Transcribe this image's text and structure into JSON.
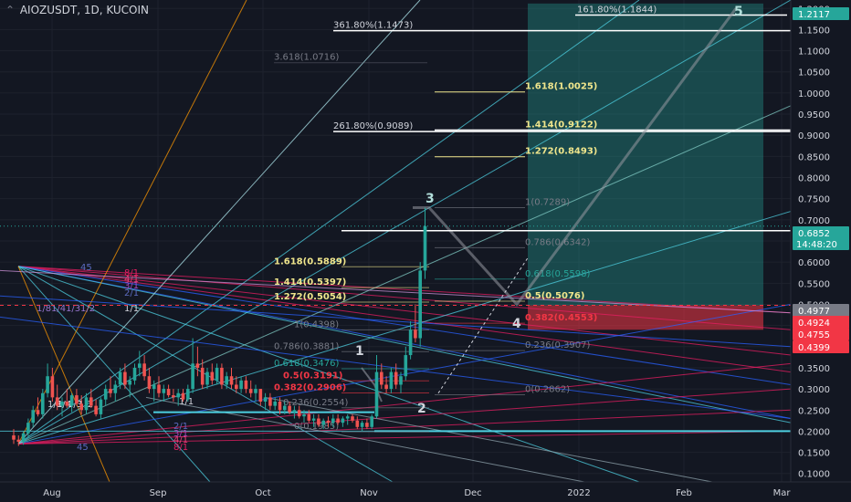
{
  "header": {
    "title": "AIOZUSDT, 1D, KUCOIN"
  },
  "chart_data": {
    "type": "candlestick",
    "symbol": "AIOZUSDT",
    "interval": "1D",
    "exchange": "KUCOIN",
    "x_ticks": [
      "Aug",
      "Sep",
      "Oct",
      "Nov",
      "Dec",
      "2022",
      "Feb",
      "Mar"
    ],
    "y_ticks": [
      "1.2000",
      "1.1500",
      "1.1000",
      "1.0500",
      "1.0000",
      "0.9500",
      "0.9000",
      "0.8500",
      "0.8000",
      "0.7500",
      "0.7000",
      "0.6500",
      "0.6000",
      "0.5500",
      "0.5000",
      "0.4500",
      "0.4000",
      "0.3500",
      "0.3000",
      "0.2500",
      "0.2000",
      "0.1500",
      "0.1000"
    ],
    "ylim": [
      0.08,
      1.22
    ],
    "last_price": {
      "value": "0.6852",
      "countdown": "14:48:20",
      "color": "#26a69a"
    },
    "price_tags": [
      {
        "value": "1.2117",
        "color": "#26a69a"
      },
      {
        "value": "0.4977",
        "color": "#787b86"
      },
      {
        "value": "0.4924",
        "color": "#f23645"
      },
      {
        "value": "0.4755",
        "color": "#f23645"
      },
      {
        "value": "0.4399",
        "color": "#f23645"
      }
    ],
    "candles": [
      {
        "d": 0,
        "o": 0.19,
        "h": 0.205,
        "l": 0.17,
        "c": 0.18
      },
      {
        "d": 1,
        "o": 0.18,
        "h": 0.19,
        "l": 0.165,
        "c": 0.175
      },
      {
        "d": 2,
        "o": 0.175,
        "h": 0.2,
        "l": 0.168,
        "c": 0.195
      },
      {
        "d": 3,
        "o": 0.195,
        "h": 0.23,
        "l": 0.185,
        "c": 0.22
      },
      {
        "d": 4,
        "o": 0.22,
        "h": 0.26,
        "l": 0.21,
        "c": 0.25
      },
      {
        "d": 5,
        "o": 0.25,
        "h": 0.28,
        "l": 0.235,
        "c": 0.24
      },
      {
        "d": 6,
        "o": 0.24,
        "h": 0.3,
        "l": 0.23,
        "c": 0.29
      },
      {
        "d": 7,
        "o": 0.29,
        "h": 0.36,
        "l": 0.28,
        "c": 0.33
      },
      {
        "d": 8,
        "o": 0.33,
        "h": 0.35,
        "l": 0.27,
        "c": 0.28
      },
      {
        "d": 9,
        "o": 0.28,
        "h": 0.31,
        "l": 0.25,
        "c": 0.26
      },
      {
        "d": 10,
        "o": 0.26,
        "h": 0.28,
        "l": 0.235,
        "c": 0.27
      },
      {
        "d": 11,
        "o": 0.27,
        "h": 0.3,
        "l": 0.255,
        "c": 0.26
      },
      {
        "d": 12,
        "o": 0.26,
        "h": 0.29,
        "l": 0.245,
        "c": 0.285
      },
      {
        "d": 13,
        "o": 0.285,
        "h": 0.3,
        "l": 0.26,
        "c": 0.265
      },
      {
        "d": 14,
        "o": 0.265,
        "h": 0.285,
        "l": 0.24,
        "c": 0.25
      },
      {
        "d": 15,
        "o": 0.25,
        "h": 0.29,
        "l": 0.24,
        "c": 0.28
      },
      {
        "d": 16,
        "o": 0.28,
        "h": 0.3,
        "l": 0.255,
        "c": 0.26
      },
      {
        "d": 17,
        "o": 0.26,
        "h": 0.275,
        "l": 0.235,
        "c": 0.24
      },
      {
        "d": 18,
        "o": 0.24,
        "h": 0.28,
        "l": 0.23,
        "c": 0.275
      },
      {
        "d": 19,
        "o": 0.275,
        "h": 0.31,
        "l": 0.26,
        "c": 0.3
      },
      {
        "d": 20,
        "o": 0.3,
        "h": 0.33,
        "l": 0.28,
        "c": 0.29
      },
      {
        "d": 21,
        "o": 0.29,
        "h": 0.32,
        "l": 0.27,
        "c": 0.31
      },
      {
        "d": 22,
        "o": 0.31,
        "h": 0.35,
        "l": 0.3,
        "c": 0.34
      },
      {
        "d": 23,
        "o": 0.34,
        "h": 0.36,
        "l": 0.3,
        "c": 0.31
      },
      {
        "d": 24,
        "o": 0.31,
        "h": 0.33,
        "l": 0.28,
        "c": 0.32
      },
      {
        "d": 25,
        "o": 0.32,
        "h": 0.36,
        "l": 0.31,
        "c": 0.35
      },
      {
        "d": 26,
        "o": 0.35,
        "h": 0.39,
        "l": 0.33,
        "c": 0.36
      },
      {
        "d": 27,
        "o": 0.36,
        "h": 0.38,
        "l": 0.32,
        "c": 0.33
      },
      {
        "d": 28,
        "o": 0.33,
        "h": 0.35,
        "l": 0.29,
        "c": 0.3
      },
      {
        "d": 29,
        "o": 0.3,
        "h": 0.32,
        "l": 0.27,
        "c": 0.31
      },
      {
        "d": 30,
        "o": 0.31,
        "h": 0.33,
        "l": 0.28,
        "c": 0.29
      },
      {
        "d": 31,
        "o": 0.29,
        "h": 0.31,
        "l": 0.27,
        "c": 0.3
      },
      {
        "d": 32,
        "o": 0.3,
        "h": 0.31,
        "l": 0.28,
        "c": 0.285
      },
      {
        "d": 33,
        "o": 0.285,
        "h": 0.3,
        "l": 0.27,
        "c": 0.28
      },
      {
        "d": 34,
        "o": 0.28,
        "h": 0.3,
        "l": 0.26,
        "c": 0.29
      },
      {
        "d": 35,
        "o": 0.29,
        "h": 0.3,
        "l": 0.27,
        "c": 0.275
      },
      {
        "d": 36,
        "o": 0.275,
        "h": 0.31,
        "l": 0.27,
        "c": 0.3
      },
      {
        "d": 37,
        "o": 0.3,
        "h": 0.42,
        "l": 0.29,
        "c": 0.36
      },
      {
        "d": 38,
        "o": 0.36,
        "h": 0.4,
        "l": 0.33,
        "c": 0.35
      },
      {
        "d": 39,
        "o": 0.35,
        "h": 0.37,
        "l": 0.3,
        "c": 0.31
      },
      {
        "d": 40,
        "o": 0.31,
        "h": 0.35,
        "l": 0.3,
        "c": 0.34
      },
      {
        "d": 41,
        "o": 0.34,
        "h": 0.36,
        "l": 0.31,
        "c": 0.32
      },
      {
        "d": 42,
        "o": 0.32,
        "h": 0.36,
        "l": 0.31,
        "c": 0.35
      },
      {
        "d": 43,
        "o": 0.35,
        "h": 0.36,
        "l": 0.3,
        "c": 0.31
      },
      {
        "d": 44,
        "o": 0.31,
        "h": 0.34,
        "l": 0.3,
        "c": 0.33
      },
      {
        "d": 45,
        "o": 0.33,
        "h": 0.35,
        "l": 0.3,
        "c": 0.31
      },
      {
        "d": 46,
        "o": 0.31,
        "h": 0.33,
        "l": 0.29,
        "c": 0.3
      },
      {
        "d": 47,
        "o": 0.3,
        "h": 0.33,
        "l": 0.29,
        "c": 0.32
      },
      {
        "d": 48,
        "o": 0.32,
        "h": 0.33,
        "l": 0.29,
        "c": 0.3
      },
      {
        "d": 49,
        "o": 0.3,
        "h": 0.32,
        "l": 0.28,
        "c": 0.29
      },
      {
        "d": 50,
        "o": 0.29,
        "h": 0.31,
        "l": 0.27,
        "c": 0.3
      },
      {
        "d": 51,
        "o": 0.3,
        "h": 0.3,
        "l": 0.26,
        "c": 0.27
      },
      {
        "d": 52,
        "o": 0.27,
        "h": 0.29,
        "l": 0.25,
        "c": 0.28
      },
      {
        "d": 53,
        "o": 0.28,
        "h": 0.29,
        "l": 0.25,
        "c": 0.26
      },
      {
        "d": 54,
        "o": 0.26,
        "h": 0.28,
        "l": 0.25,
        "c": 0.27
      },
      {
        "d": 55,
        "o": 0.27,
        "h": 0.28,
        "l": 0.24,
        "c": 0.25
      },
      {
        "d": 56,
        "o": 0.25,
        "h": 0.27,
        "l": 0.24,
        "c": 0.26
      },
      {
        "d": 57,
        "o": 0.26,
        "h": 0.27,
        "l": 0.24,
        "c": 0.245
      },
      {
        "d": 58,
        "o": 0.245,
        "h": 0.26,
        "l": 0.23,
        "c": 0.25
      },
      {
        "d": 59,
        "o": 0.25,
        "h": 0.26,
        "l": 0.23,
        "c": 0.235
      },
      {
        "d": 60,
        "o": 0.235,
        "h": 0.25,
        "l": 0.22,
        "c": 0.24
      },
      {
        "d": 61,
        "o": 0.24,
        "h": 0.25,
        "l": 0.22,
        "c": 0.225
      },
      {
        "d": 62,
        "o": 0.225,
        "h": 0.24,
        "l": 0.21,
        "c": 0.23
      },
      {
        "d": 63,
        "o": 0.23,
        "h": 0.24,
        "l": 0.21,
        "c": 0.215
      },
      {
        "d": 64,
        "o": 0.215,
        "h": 0.23,
        "l": 0.205,
        "c": 0.225
      },
      {
        "d": 65,
        "o": 0.225,
        "h": 0.235,
        "l": 0.21,
        "c": 0.22
      },
      {
        "d": 66,
        "o": 0.22,
        "h": 0.24,
        "l": 0.21,
        "c": 0.23
      },
      {
        "d": 67,
        "o": 0.23,
        "h": 0.24,
        "l": 0.215,
        "c": 0.22
      },
      {
        "d": 68,
        "o": 0.22,
        "h": 0.235,
        "l": 0.21,
        "c": 0.23
      },
      {
        "d": 69,
        "o": 0.23,
        "h": 0.24,
        "l": 0.215,
        "c": 0.235
      },
      {
        "d": 70,
        "o": 0.235,
        "h": 0.24,
        "l": 0.22,
        "c": 0.225
      },
      {
        "d": 71,
        "o": 0.225,
        "h": 0.235,
        "l": 0.205,
        "c": 0.21
      },
      {
        "d": 72,
        "o": 0.21,
        "h": 0.225,
        "l": 0.2,
        "c": 0.22
      },
      {
        "d": 73,
        "o": 0.22,
        "h": 0.23,
        "l": 0.205,
        "c": 0.21
      },
      {
        "d": 74,
        "o": 0.21,
        "h": 0.24,
        "l": 0.205,
        "c": 0.235
      },
      {
        "d": 75,
        "o": 0.235,
        "h": 0.38,
        "l": 0.23,
        "c": 0.34
      },
      {
        "d": 76,
        "o": 0.34,
        "h": 0.36,
        "l": 0.3,
        "c": 0.31
      },
      {
        "d": 77,
        "o": 0.31,
        "h": 0.33,
        "l": 0.29,
        "c": 0.3
      },
      {
        "d": 78,
        "o": 0.3,
        "h": 0.35,
        "l": 0.29,
        "c": 0.34
      },
      {
        "d": 79,
        "o": 0.34,
        "h": 0.36,
        "l": 0.3,
        "c": 0.31
      },
      {
        "d": 80,
        "o": 0.31,
        "h": 0.34,
        "l": 0.29,
        "c": 0.33
      },
      {
        "d": 81,
        "o": 0.33,
        "h": 0.4,
        "l": 0.32,
        "c": 0.38
      },
      {
        "d": 82,
        "o": 0.38,
        "h": 0.46,
        "l": 0.37,
        "c": 0.44
      },
      {
        "d": 83,
        "o": 0.44,
        "h": 0.5,
        "l": 0.41,
        "c": 0.42
      },
      {
        "d": 84,
        "o": 0.42,
        "h": 0.6,
        "l": 0.4,
        "c": 0.58
      },
      {
        "d": 85,
        "o": 0.58,
        "h": 0.7289,
        "l": 0.56,
        "c": 0.6852
      }
    ],
    "fibonacci": [
      {
        "label": "361.80%(1.1473)",
        "value": 1.1473,
        "color": "#d1d4dc"
      },
      {
        "label": "3.618(1.0716)",
        "value": 1.0716,
        "color": "#787b86"
      },
      {
        "label": "261.80%(0.9089)",
        "value": 0.9089,
        "color": "#d1d4dc"
      },
      {
        "label": "161.80%(1.1844)",
        "value": 1.1844,
        "color": "#d1d4dc"
      },
      {
        "label": "1.618(1.0025)",
        "value": 1.0025,
        "color": "#f0e68c"
      },
      {
        "label": "1.414(0.9122)",
        "value": 0.9122,
        "color": "#f0e68c"
      },
      {
        "label": "1.272(0.8493)",
        "value": 0.8493,
        "color": "#f0e68c"
      },
      {
        "label": "1(0.7289)",
        "value": 0.7289,
        "color": "#787b86"
      },
      {
        "label": "0.786(0.6342)",
        "value": 0.6342,
        "color": "#787b86"
      },
      {
        "label": "0.618(0.5598)",
        "value": 0.5598,
        "color": "#26a69a"
      },
      {
        "label": "0.5(0.5076)",
        "value": 0.5076,
        "color": "#f0e68c"
      },
      {
        "label": "0.382(0.4553)",
        "value": 0.4553,
        "color": "#f23645"
      },
      {
        "label": "0.236(0.3907)",
        "value": 0.3907,
        "color": "#787b86"
      },
      {
        "label": "0(0.2862)",
        "value": 0.2862,
        "color": "#787b86"
      },
      {
        "label": "1.618(0.5889)",
        "value": 0.5889,
        "color": "#f0e68c"
      },
      {
        "label": "1.414(0.5397)",
        "value": 0.5397,
        "color": "#f0e68c"
      },
      {
        "label": "1.272(0.5054)",
        "value": 0.5054,
        "color": "#f0e68c"
      },
      {
        "label": "1(0.4398)",
        "value": 0.4398,
        "color": "#787b86"
      },
      {
        "label": "0.786(0.3881)",
        "value": 0.3881,
        "color": "#787b86"
      },
      {
        "label": "0.618(0.3476)",
        "value": 0.3476,
        "color": "#26a69a"
      },
      {
        "label": "0.5(0.3191)",
        "value": 0.3191,
        "color": "#f23645"
      },
      {
        "label": "0.382(0.2906)",
        "value": 0.2906,
        "color": "#f23645"
      },
      {
        "label": "0.236(0.2554)",
        "value": 0.2554,
        "color": "#787b86"
      },
      {
        "label": "0(0.1985)",
        "value": 0.1985,
        "color": "#787b86"
      }
    ],
    "gann_labels": [
      "45",
      "8/1",
      "4/1",
      "3/1",
      "2/1",
      "1/8",
      "1/4",
      "1/3",
      "1/2",
      "1/1",
      "2/1",
      "3/1",
      "4/1",
      "8/1",
      "45",
      "1/8",
      "1/4",
      "1/3",
      "1/2",
      "1/1"
    ],
    "wave_labels": [
      {
        "label": "1",
        "color": "#d1d4dc"
      },
      {
        "label": "2",
        "color": "#d1d4dc"
      },
      {
        "label": "3",
        "color": "#b2dfdb"
      },
      {
        "label": "4",
        "color": "#d1d4dc"
      },
      {
        "label": "5",
        "color": "#b2dfdb"
      }
    ],
    "colors": {
      "background": "#131722",
      "up": "#26a69a",
      "down": "#ef5350",
      "fib_gold": "#f0e68c",
      "gann_red": "#e91e63",
      "gann_blue": "#2962ff",
      "gann_teal": "#4dd0e1",
      "gann_orange": "#ff9800",
      "target_zone": "#26a69a",
      "stop_zone": "#f23645"
    }
  }
}
